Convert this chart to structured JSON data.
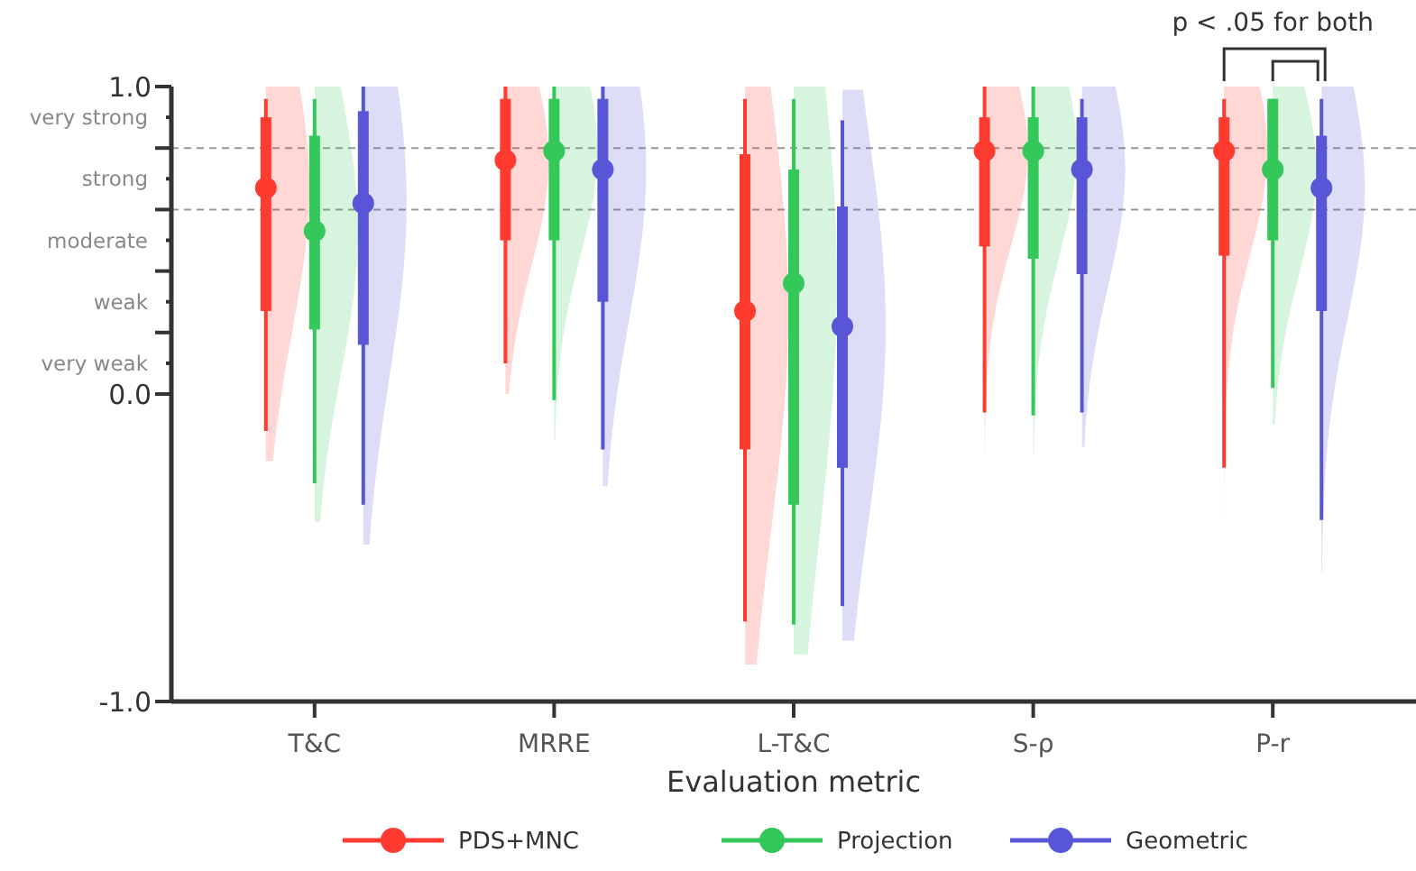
{
  "chart_data": {
    "type": "box",
    "xlabel": "Evaluation metric",
    "categories": [
      "T&C",
      "MRRE",
      "L-T&C",
      "S-ρ",
      "P-r"
    ],
    "ylim": [
      -1,
      1
    ],
    "yticks": [
      {
        "value": 1,
        "label": "1.0"
      },
      {
        "value": 0.9,
        "label": "very strong"
      },
      {
        "value": 0.8,
        "label": null
      },
      {
        "value": 0.7,
        "label": "strong"
      },
      {
        "value": 0.6,
        "label": null
      },
      {
        "value": 0.5,
        "label": "moderate"
      },
      {
        "value": 0.4,
        "label": null
      },
      {
        "value": 0.3,
        "label": "weak"
      },
      {
        "value": 0.2,
        "label": null
      },
      {
        "value": 0.1,
        "label": "very weak"
      },
      {
        "value": 0,
        "label": "0.0"
      },
      {
        "value": -1,
        "label": "-1.0"
      }
    ],
    "ref_lines": [
      {
        "axis": "y",
        "value": 0.8,
        "color": "#999999",
        "line_style": "dashed"
      },
      {
        "axis": "y",
        "value": 0.6,
        "color": "#999999",
        "line_style": "dashed"
      }
    ],
    "annotations": [
      "p < .05 for both"
    ],
    "grid": false,
    "legend": "bottom",
    "marker": "circle",
    "series": [
      {
        "name": "PDS+MNC",
        "color": "#ff3b30",
        "boxes": [
          {
            "low": -0.12,
            "q1": 0.27,
            "median": 0.67,
            "q3": 0.9,
            "high": 0.96
          },
          {
            "low": 0.1,
            "q1": 0.5,
            "median": 0.76,
            "q3": 0.96,
            "high": 1.0
          },
          {
            "low": -0.74,
            "q1": -0.18,
            "median": 0.27,
            "q3": 0.78,
            "high": 0.96
          },
          {
            "low": -0.06,
            "q1": 0.48,
            "median": 0.79,
            "q3": 0.9,
            "high": 1.0
          },
          {
            "low": -0.24,
            "q1": 0.45,
            "median": 0.79,
            "q3": 0.9,
            "high": 0.96
          }
        ]
      },
      {
        "name": "Projection",
        "color": "#34c759",
        "boxes": [
          {
            "low": -0.29,
            "q1": 0.21,
            "median": 0.53,
            "q3": 0.84,
            "high": 0.96
          },
          {
            "low": -0.02,
            "q1": 0.5,
            "median": 0.79,
            "q3": 0.96,
            "high": 1.0
          },
          {
            "low": -0.75,
            "q1": -0.36,
            "median": 0.36,
            "q3": 0.73,
            "high": 0.96
          },
          {
            "low": -0.07,
            "q1": 0.44,
            "median": 0.79,
            "q3": 0.9,
            "high": 1.0
          },
          {
            "low": 0.02,
            "q1": 0.5,
            "median": 0.73,
            "q3": 0.96,
            "high": 0.96
          }
        ]
      },
      {
        "name": "Geometric",
        "color": "#5856d6",
        "boxes": [
          {
            "low": -0.36,
            "q1": 0.16,
            "median": 0.62,
            "q3": 0.92,
            "high": 1.0
          },
          {
            "low": -0.18,
            "q1": 0.3,
            "median": 0.73,
            "q3": 0.96,
            "high": 1.0
          },
          {
            "low": -0.69,
            "q1": -0.24,
            "median": 0.22,
            "q3": 0.61,
            "high": 0.89
          },
          {
            "low": -0.06,
            "q1": 0.39,
            "median": 0.73,
            "q3": 0.9,
            "high": 0.96
          },
          {
            "low": -0.41,
            "q1": 0.27,
            "median": 0.67,
            "q3": 0.84,
            "high": 0.96
          }
        ]
      }
    ]
  }
}
